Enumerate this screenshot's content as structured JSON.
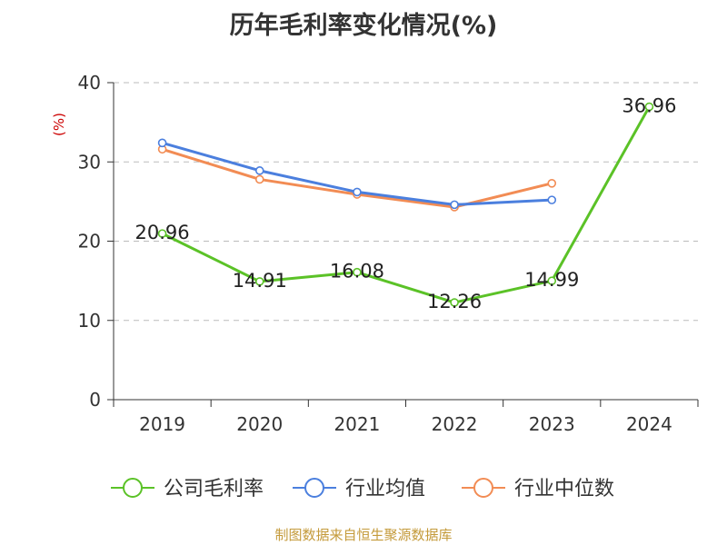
{
  "title": "历年毛利率变化情况(%)",
  "unit_label": "(%)",
  "source": "制图数据来自恒生聚源数据库",
  "colors": {
    "title": "#333333",
    "unit": "#cc0000",
    "source": "#c49a3a",
    "axis": "#333333",
    "grid": "#bbbbbb"
  },
  "chart_data": {
    "type": "line",
    "title": "历年毛利率变化情况(%)",
    "categories": [
      "2019",
      "2020",
      "2021",
      "2022",
      "2023",
      "2024"
    ],
    "ylim": [
      0,
      40
    ],
    "yticks": [
      0,
      10,
      20,
      30,
      40
    ],
    "grid": true,
    "legend_position": "bottom",
    "series": [
      {
        "name": "公司毛利率",
        "color": "#5bc227",
        "values": [
          20.96,
          14.91,
          16.08,
          12.26,
          14.99,
          36.96
        ],
        "labels": [
          "20.96",
          "14.91",
          "16.08",
          "12.26",
          "14.99",
          "36.96"
        ]
      },
      {
        "name": "行业均值",
        "color": "#4b7fde",
        "values": [
          32.4,
          28.9,
          26.2,
          24.6,
          25.2,
          null
        ]
      },
      {
        "name": "行业中位数",
        "color": "#f28c54",
        "values": [
          31.6,
          27.8,
          25.9,
          24.3,
          27.3,
          null
        ]
      }
    ]
  }
}
